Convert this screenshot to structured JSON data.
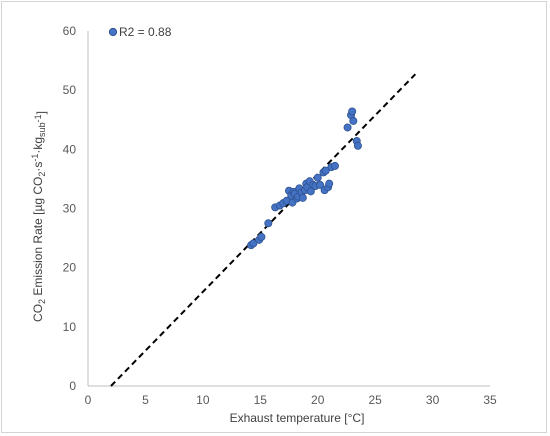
{
  "chart_data": {
    "type": "scatter",
    "title": "",
    "xlabel": "Exhaust temperature  [°C]",
    "ylabel_parts": [
      "CO",
      "2",
      " Emission Rate  [µg CO",
      "2",
      "·s",
      "-1",
      "·kg",
      "sub",
      "",
      "-1",
      "]"
    ],
    "xlim": [
      0,
      35
    ],
    "ylim": [
      0,
      60
    ],
    "x_ticks": [
      "0",
      "5",
      "10",
      "15",
      "20",
      "25",
      "30",
      "35"
    ],
    "y_ticks": [
      "0",
      "10",
      "20",
      "30",
      "40",
      "50",
      "60"
    ],
    "grid": false,
    "legend_position": "top-left",
    "annotation": "R2 = 0.88",
    "marker_color": "#4472c4",
    "marker_edge": "#2f528f",
    "points": [
      [
        14.2,
        23.8
      ],
      [
        14.4,
        24.1
      ],
      [
        14.9,
        24.7
      ],
      [
        15.1,
        25.2
      ],
      [
        15.7,
        27.5
      ],
      [
        16.3,
        30.2
      ],
      [
        16.7,
        30.5
      ],
      [
        17.0,
        30.9
      ],
      [
        17.3,
        31.3
      ],
      [
        17.5,
        33.0
      ],
      [
        17.7,
        32.2
      ],
      [
        17.8,
        31.0
      ],
      [
        17.9,
        32.8
      ],
      [
        18.0,
        32.5
      ],
      [
        18.2,
        31.7
      ],
      [
        18.3,
        32.0
      ],
      [
        18.4,
        33.4
      ],
      [
        18.6,
        32.7
      ],
      [
        18.7,
        31.8
      ],
      [
        18.9,
        33.1
      ],
      [
        19.0,
        34.2
      ],
      [
        19.1,
        33.6
      ],
      [
        19.3,
        34.6
      ],
      [
        19.4,
        32.9
      ],
      [
        19.6,
        34.0
      ],
      [
        19.8,
        33.8
      ],
      [
        20.0,
        35.2
      ],
      [
        20.2,
        34.0
      ],
      [
        20.5,
        36.1
      ],
      [
        20.6,
        33.1
      ],
      [
        20.7,
        36.4
      ],
      [
        20.9,
        33.6
      ],
      [
        21.0,
        34.2
      ],
      [
        21.2,
        37.0
      ],
      [
        21.5,
        37.2
      ],
      [
        22.6,
        43.7
      ],
      [
        22.9,
        45.8
      ],
      [
        23.0,
        46.4
      ],
      [
        23.1,
        44.8
      ],
      [
        23.4,
        41.4
      ],
      [
        23.5,
        40.6
      ]
    ],
    "trendline": {
      "x": [
        2.0,
        28.5
      ],
      "y": [
        0.0,
        52.7
      ],
      "color": "#000000",
      "style": "dashed"
    }
  }
}
